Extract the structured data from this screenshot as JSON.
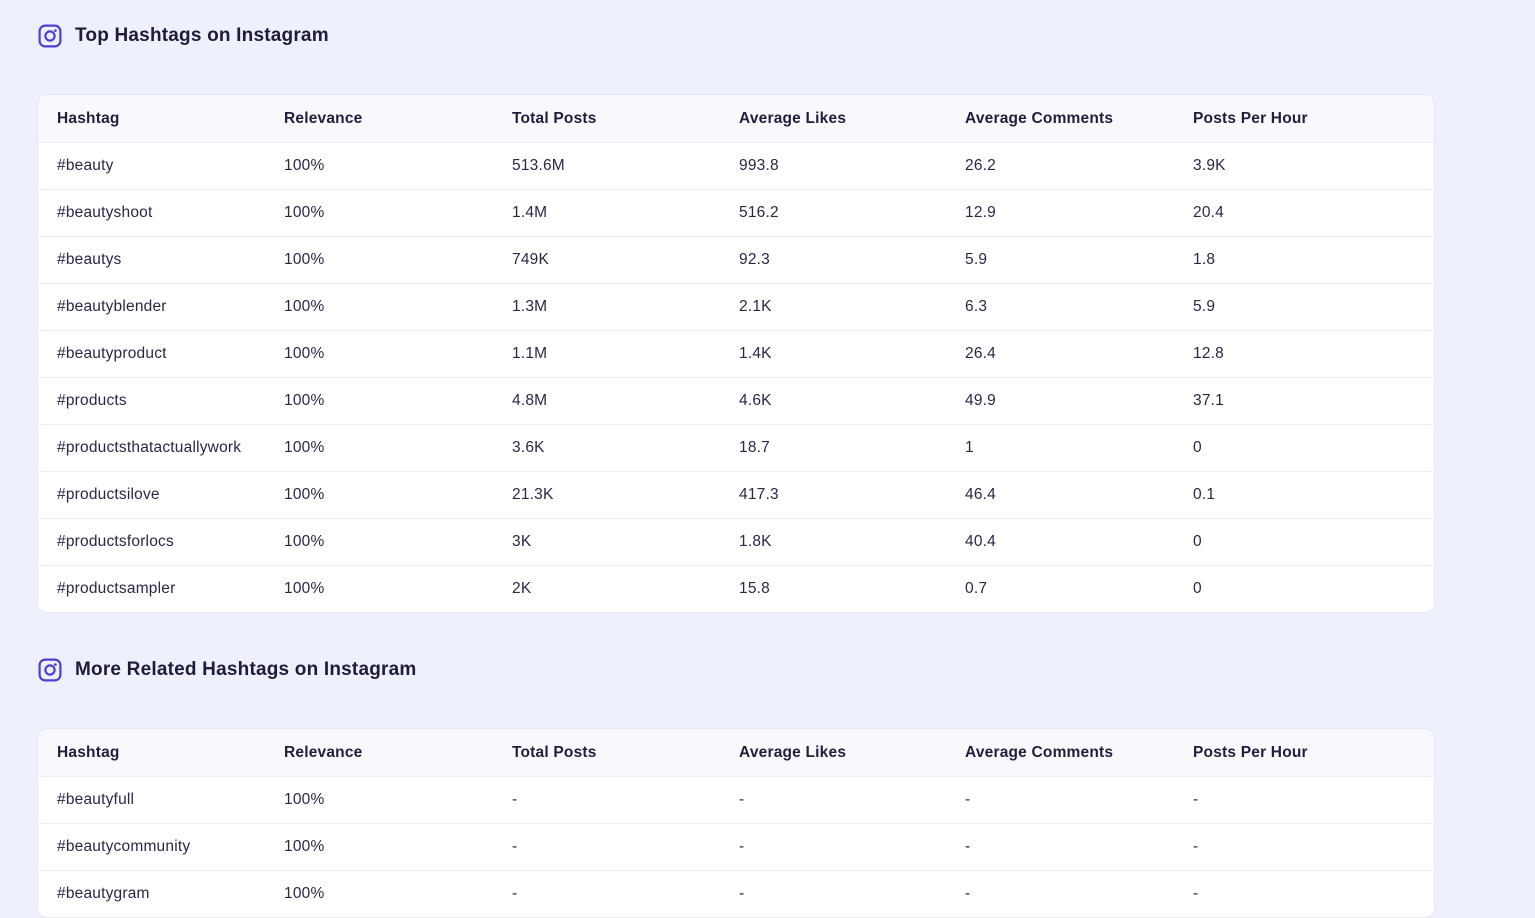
{
  "colors": {
    "accent": "#4e3fd3",
    "page_background": "#eef1fb",
    "table_background": "#ffffff"
  },
  "sections": [
    {
      "title": "Top Hashtags on Instagram",
      "icon": "instagram-icon",
      "table": {
        "headers": [
          "Hashtag",
          "Relevance",
          "Total Posts",
          "Average Likes",
          "Average Comments",
          "Posts Per Hour"
        ],
        "rows": [
          [
            "#beauty",
            "100%",
            "513.6M",
            "993.8",
            "26.2",
            "3.9K"
          ],
          [
            "#beautyshoot",
            "100%",
            "1.4M",
            "516.2",
            "12.9",
            "20.4"
          ],
          [
            "#beautys",
            "100%",
            "749K",
            "92.3",
            "5.9",
            "1.8"
          ],
          [
            "#beautyblender",
            "100%",
            "1.3M",
            "2.1K",
            "6.3",
            "5.9"
          ],
          [
            "#beautyproduct",
            "100%",
            "1.1M",
            "1.4K",
            "26.4",
            "12.8"
          ],
          [
            "#products",
            "100%",
            "4.8M",
            "4.6K",
            "49.9",
            "37.1"
          ],
          [
            "#productsthatactuallywork",
            "100%",
            "3.6K",
            "18.7",
            "1",
            "0"
          ],
          [
            "#productsilove",
            "100%",
            "21.3K",
            "417.3",
            "46.4",
            "0.1"
          ],
          [
            "#productsforlocs",
            "100%",
            "3K",
            "1.8K",
            "40.4",
            "0"
          ],
          [
            "#productsampler",
            "100%",
            "2K",
            "15.8",
            "0.7",
            "0"
          ]
        ]
      }
    },
    {
      "title": "More Related Hashtags on Instagram",
      "icon": "instagram-icon",
      "table": {
        "headers": [
          "Hashtag",
          "Relevance",
          "Total Posts",
          "Average Likes",
          "Average Comments",
          "Posts Per Hour"
        ],
        "rows": [
          [
            "#beautyfull",
            "100%",
            "-",
            "-",
            "-",
            "-"
          ],
          [
            "#beautycommunity",
            "100%",
            "-",
            "-",
            "-",
            "-"
          ],
          [
            "#beautygram",
            "100%",
            "-",
            "-",
            "-",
            "-"
          ]
        ]
      }
    }
  ]
}
